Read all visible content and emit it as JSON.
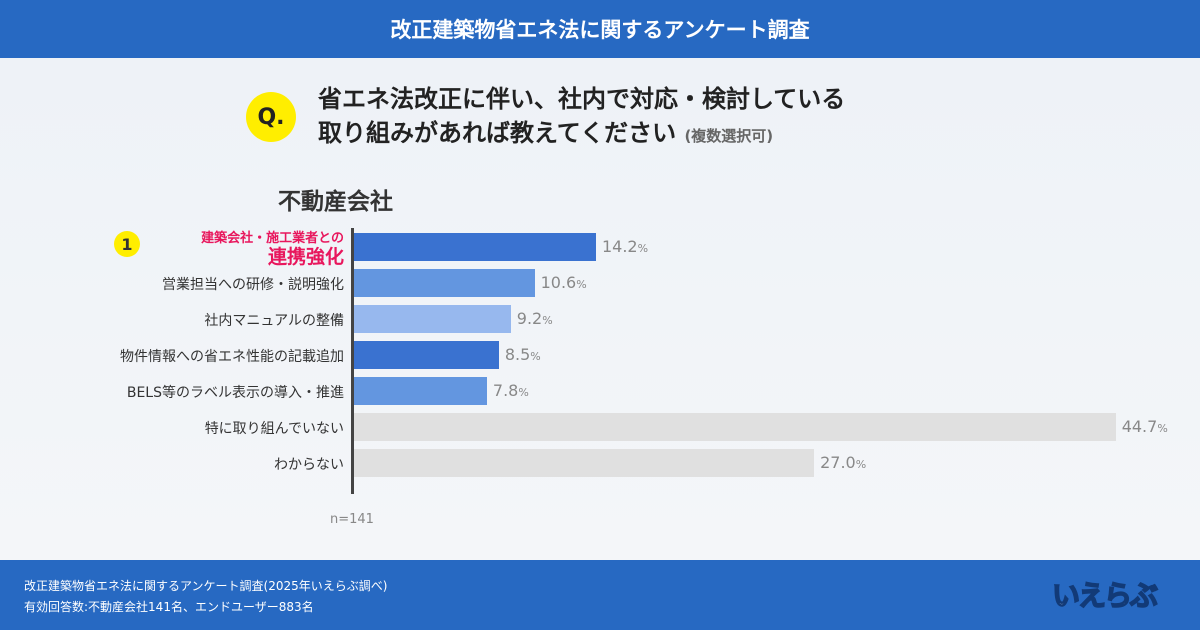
{
  "header": {
    "title": "改正建築物省エネ法に関するアンケート調査"
  },
  "question": {
    "badge": "Q.",
    "line1": "省エネ法改正に伴い、社内で対応・検討している",
    "line2": "取り組みがあれば教えてください",
    "note": "(複数選択可)"
  },
  "chart_data": {
    "type": "bar",
    "orientation": "horizontal",
    "title": "不動産会社",
    "categories": [
      "建築会社・施工業者との連携強化",
      "営業担当への研修・説明強化",
      "社内マニュアルの整備",
      "物件情報への省エネ性能の記載追加",
      "BELS等のラベル表示の導入・推進",
      "特に取り組んでいない",
      "わからない"
    ],
    "highlight": {
      "rank": "1",
      "line1": "建築会社・施工業者との",
      "line2": "連携強化"
    },
    "values": [
      14.2,
      10.6,
      9.2,
      8.5,
      7.8,
      44.7,
      27.0
    ],
    "labels": [
      "14.2",
      "10.6",
      "9.2",
      "8.5",
      "7.8",
      "44.7",
      "27.0"
    ],
    "unit": "%",
    "colors": [
      "#3a72d0",
      "#6396e0",
      "#97b8ee",
      "#3a72d0",
      "#6396e0",
      "#e0e0e0",
      "#e0e0e0"
    ],
    "xlim": [
      0,
      50
    ],
    "grid": false,
    "n_label": "n=141"
  },
  "footer": {
    "line1": "改正建築物省エネ法に関するアンケート調査(2025年いえらぶ調べ)",
    "line2": "有効回答数:不動産会社141名、エンドユーザー883名",
    "logo": "いえらぶ"
  }
}
